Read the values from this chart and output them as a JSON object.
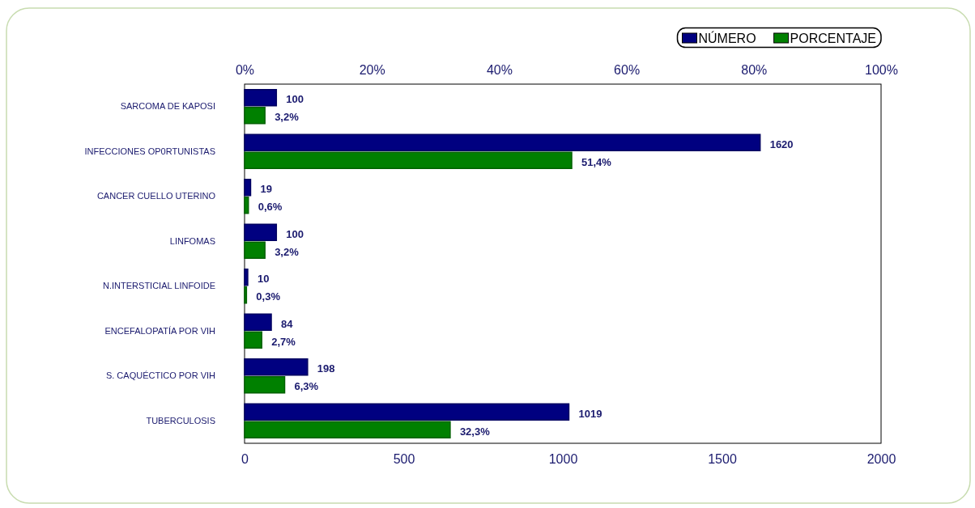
{
  "chart_data": {
    "type": "bar",
    "orientation": "horizontal",
    "categories": [
      "SARCOMA DE KAPOSI",
      "INFECCIONES OP0RTUNISTAS",
      "CANCER CUELLO UTERINO",
      "LINFOMAS",
      "N.INTERSTICIAL LINFOIDE",
      "ENCEFALOPATÍA POR VIH",
      "S. CAQUÉCTICO POR VIH",
      "TUBERCULOSIS"
    ],
    "series": [
      {
        "name": "NÚMERO",
        "color": "#000080",
        "values": [
          100,
          1620,
          19,
          100,
          10,
          84,
          198,
          1019
        ],
        "value_labels": [
          "100",
          "1620",
          "19",
          "100",
          "10",
          "84",
          "198",
          "1019"
        ]
      },
      {
        "name": "PORCENTAJE",
        "color": "#008000",
        "axis": "x2",
        "values": [
          3.2,
          51.4,
          0.6,
          3.2,
          0.3,
          2.7,
          6.3,
          32.3
        ],
        "value_labels": [
          "3,2%",
          "51,4%",
          "0,6%",
          "3,2%",
          "0,3%",
          "2,7%",
          "6,3%",
          "32,3%"
        ]
      }
    ],
    "xlim": [
      0,
      2000
    ],
    "xticks": [
      0,
      500,
      1000,
      1500,
      2000
    ],
    "x2lim": [
      0,
      100
    ],
    "x2ticks": [
      {
        "value": 0,
        "label": "0%"
      },
      {
        "value": 20,
        "label": "20%"
      },
      {
        "value": 40,
        "label": "40%"
      },
      {
        "value": 60,
        "label": "60%"
      },
      {
        "value": 80,
        "label": "80%"
      },
      {
        "value": 100,
        "label": "100%"
      }
    ],
    "legend": "top right",
    "grid": false
  }
}
